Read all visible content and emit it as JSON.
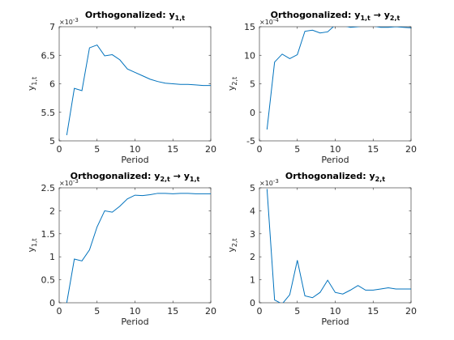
{
  "chart_data": [
    {
      "type": "line",
      "title": "Orthogonalized: y1,t",
      "title_parts": [
        {
          "t": "Orthogonalized: y",
          "sub": false
        },
        {
          "t": "1,t",
          "sub": true
        }
      ],
      "xlabel": "Period",
      "ylabel_parts": [
        {
          "t": "y",
          "sub": false
        },
        {
          "t": "1,t",
          "sub": true
        }
      ],
      "exponent_label": "×10",
      "exponent_power": "-3",
      "xlim": [
        0,
        20
      ],
      "ylim": [
        5,
        7
      ],
      "xticks": [
        0,
        5,
        10,
        15,
        20
      ],
      "yticks": [
        5,
        5.5,
        6,
        6.5,
        7
      ],
      "ytick_labels": [
        "5",
        "5.5",
        "6",
        "6.5",
        "7"
      ],
      "color": "#0072bd",
      "series": [
        {
          "x": [
            1,
            2,
            3,
            4,
            5,
            6,
            7,
            8,
            9,
            10,
            11,
            12,
            13,
            14,
            15,
            16,
            17,
            18,
            19,
            20
          ],
          "values": [
            5.1,
            5.92,
            5.88,
            6.63,
            6.68,
            6.49,
            6.51,
            6.42,
            6.26,
            6.2,
            6.14,
            6.08,
            6.04,
            6.01,
            6.0,
            5.99,
            5.99,
            5.98,
            5.97,
            5.97
          ]
        }
      ]
    },
    {
      "type": "line",
      "title": "Orthogonalized: y1,t → y2,t",
      "title_parts": [
        {
          "t": "Orthogonalized: y",
          "sub": false
        },
        {
          "t": "1,t",
          "sub": true
        },
        {
          "t": " → y",
          "sub": false
        },
        {
          "t": "2,t",
          "sub": true
        }
      ],
      "xlabel": "Period",
      "ylabel_parts": [
        {
          "t": "y",
          "sub": false
        },
        {
          "t": "2,t",
          "sub": true
        }
      ],
      "exponent_label": "×10",
      "exponent_power": "-4",
      "xlim": [
        0,
        20
      ],
      "ylim": [
        -5,
        15
      ],
      "xticks": [
        0,
        5,
        10,
        15,
        20
      ],
      "yticks": [
        -5,
        0,
        5,
        10,
        15
      ],
      "ytick_labels": [
        "-5",
        "0",
        "5",
        "10",
        "15"
      ],
      "color": "#0072bd",
      "series": [
        {
          "x": [
            1,
            2,
            3,
            4,
            5,
            6,
            7,
            8,
            9,
            10,
            11,
            12,
            13,
            14,
            15,
            16,
            17,
            18,
            19,
            20
          ],
          "values": [
            -3.0,
            8.8,
            10.2,
            9.4,
            10.1,
            14.2,
            14.4,
            13.9,
            14.1,
            15.3,
            15.2,
            14.9,
            15.0,
            15.2,
            15.1,
            14.9,
            14.9,
            15.0,
            14.9,
            14.8
          ]
        }
      ]
    },
    {
      "type": "line",
      "title": "Orthogonalized: y2,t → y1,t",
      "title_parts": [
        {
          "t": "Orthogonalized: y",
          "sub": false
        },
        {
          "t": "2,t",
          "sub": true
        },
        {
          "t": " → y",
          "sub": false
        },
        {
          "t": "1,t",
          "sub": true
        }
      ],
      "xlabel": "Period",
      "ylabel_parts": [
        {
          "t": "y",
          "sub": false
        },
        {
          "t": "1,t",
          "sub": true
        }
      ],
      "exponent_label": "×10",
      "exponent_power": "-3",
      "xlim": [
        0,
        20
      ],
      "ylim": [
        0,
        2.5
      ],
      "xticks": [
        0,
        5,
        10,
        15,
        20
      ],
      "yticks": [
        0,
        0.5,
        1,
        1.5,
        2,
        2.5
      ],
      "ytick_labels": [
        "0",
        "0.5",
        "1",
        "1.5",
        "2",
        "2.5"
      ],
      "color": "#0072bd",
      "series": [
        {
          "x": [
            1,
            2,
            3,
            4,
            5,
            6,
            7,
            8,
            9,
            10,
            11,
            12,
            13,
            14,
            15,
            16,
            17,
            18,
            19,
            20
          ],
          "values": [
            0.0,
            0.95,
            0.91,
            1.15,
            1.65,
            2.0,
            1.97,
            2.1,
            2.26,
            2.34,
            2.33,
            2.35,
            2.38,
            2.38,
            2.37,
            2.38,
            2.38,
            2.37,
            2.37,
            2.37
          ]
        }
      ]
    },
    {
      "type": "line",
      "title": "Orthogonalized: y2,t",
      "title_parts": [
        {
          "t": "Orthogonalized: y",
          "sub": false
        },
        {
          "t": "2,t",
          "sub": true
        }
      ],
      "xlabel": "Period",
      "ylabel_parts": [
        {
          "t": "y",
          "sub": false
        },
        {
          "t": "2,t",
          "sub": true
        }
      ],
      "exponent_label": "×10",
      "exponent_power": "-3",
      "xlim": [
        0,
        20
      ],
      "ylim": [
        0,
        5
      ],
      "xticks": [
        0,
        5,
        10,
        15,
        20
      ],
      "yticks": [
        0,
        1,
        2,
        3,
        4,
        5
      ],
      "ytick_labels": [
        "0",
        "1",
        "2",
        "3",
        "4",
        "5"
      ],
      "color": "#0072bd",
      "series": [
        {
          "x": [
            1,
            2,
            3,
            4,
            5,
            6,
            7,
            8,
            9,
            10,
            11,
            12,
            13,
            14,
            15,
            16,
            17,
            18,
            19,
            20
          ],
          "values": [
            4.95,
            0.12,
            -0.05,
            0.35,
            1.85,
            0.3,
            0.22,
            0.45,
            0.98,
            0.45,
            0.38,
            0.55,
            0.75,
            0.55,
            0.55,
            0.6,
            0.65,
            0.6,
            0.6,
            0.6
          ]
        }
      ]
    }
  ]
}
